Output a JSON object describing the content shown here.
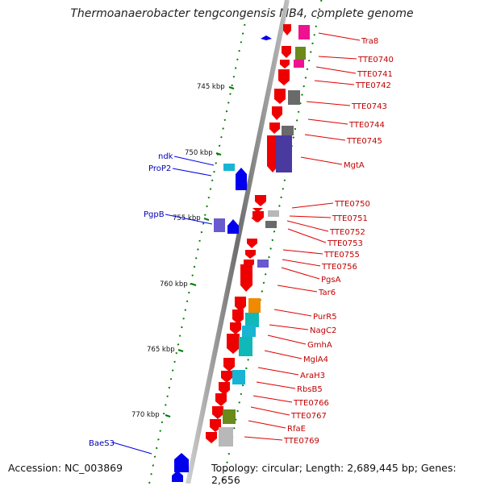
{
  "title": "Thermoanaerobacter tengcongensis MB4, complete genome",
  "footer": {
    "accession": "Accession: NC_003869",
    "topology": "Topology: circular; Length: 2,689,445 bp; Genes: 2,656"
  },
  "kbp_ticks": [
    "745 kbp",
    "750 kbp",
    "755 kbp",
    "760 kbp",
    "765 kbp",
    "770 kbp"
  ],
  "forward_strand_labels": [
    "Tra8",
    "TTE0740",
    "TTE0741",
    "TTE0742",
    "TTE0743",
    "TTE0744",
    "TTE0745",
    "MgtA",
    "TTE0750",
    "TTE0751",
    "TTE0752",
    "TTE0753",
    "TTE0755",
    "TTE0756",
    "PgsA",
    "Tar6",
    "PurR5",
    "NagC2",
    "GmhA",
    "MglA4",
    "AraH3",
    "RbsB5",
    "TTE0766",
    "TTE0767",
    "RfaE",
    "TTE0769"
  ],
  "reverse_strand_labels": [
    "ndk",
    "ProP2",
    "PgpB",
    "BaeS3"
  ],
  "colors": {
    "forward_gene": "#ee0000",
    "reverse_gene": "#0000ee",
    "forward_label": "#c00000",
    "reverse_label": "#0000b4",
    "backbone": "#808080",
    "tick": "#007a00",
    "cog_magenta": "#ee1290",
    "cog_olive": "#6a8a1a",
    "cog_gray": "#6a6a6a",
    "cog_navy": "#4a3aa0",
    "cog_cyan": "#18b4d4",
    "cog_violet": "#6a5ad0",
    "cog_orange": "#f08a00",
    "cog_teal": "#10b8b8",
    "cog_silver": "#b8b8b8"
  }
}
